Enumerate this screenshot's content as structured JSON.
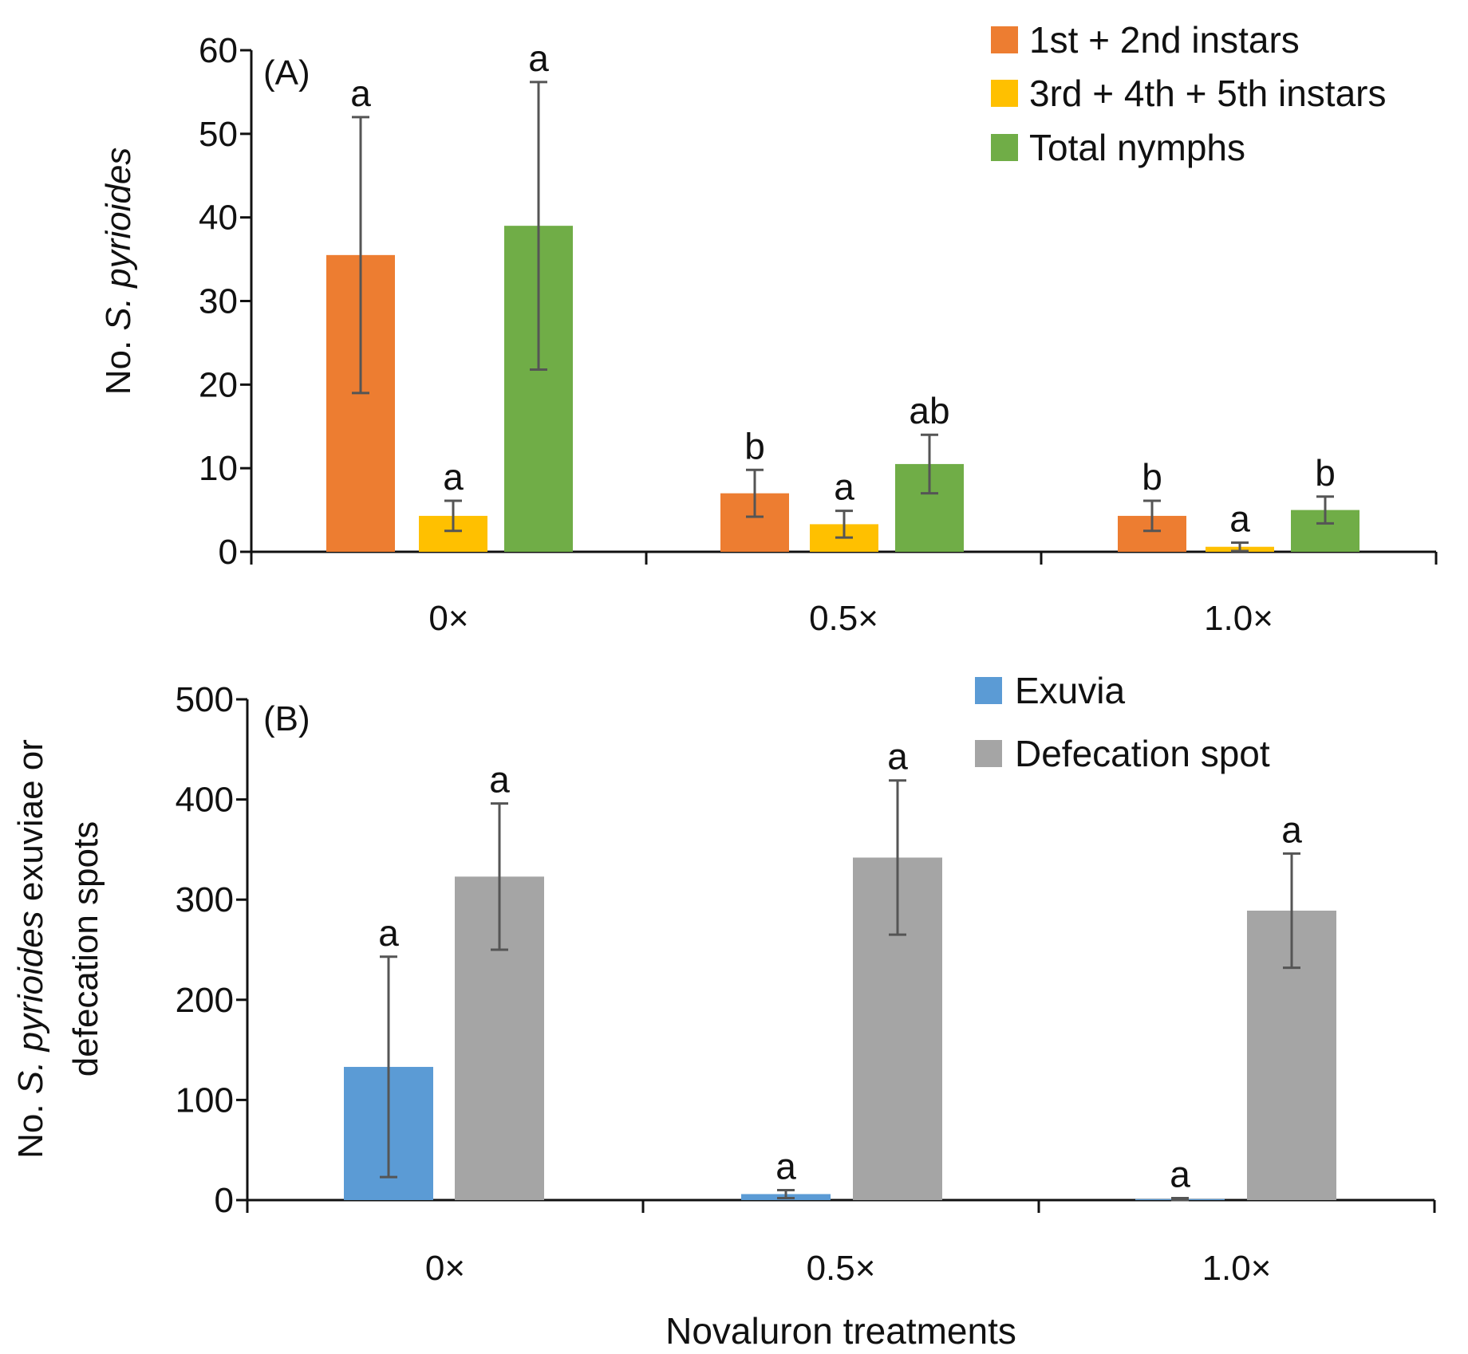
{
  "chart_data": [
    {
      "type": "bar",
      "panel_label": "(A)",
      "categories": [
        "0×",
        "0.5×",
        "1.0×"
      ],
      "ylabel_prefix": "No. ",
      "ylabel_italic": "S. pyrioides",
      "ylim": [
        0,
        60
      ],
      "yticks": [
        0,
        10,
        20,
        30,
        40,
        50,
        60
      ],
      "legend_position": "top-right",
      "series": [
        {
          "name": "1st + 2nd instars",
          "color": "#ED7D31",
          "values": [
            35.5,
            7.0,
            4.3
          ],
          "errors": [
            16.5,
            2.8,
            1.8
          ],
          "letters": [
            "a",
            "b",
            "b"
          ]
        },
        {
          "name": "3rd + 4th + 5th instars",
          "color": "#FFC000",
          "values": [
            4.3,
            3.3,
            0.6
          ],
          "errors": [
            1.8,
            1.6,
            0.5
          ],
          "letters": [
            "a",
            "a",
            "a"
          ]
        },
        {
          "name": "Total nymphs",
          "color": "#70AD47",
          "values": [
            39.0,
            10.5,
            5.0
          ],
          "errors": [
            17.2,
            3.5,
            1.6
          ],
          "letters": [
            "a",
            "ab",
            "b"
          ]
        }
      ]
    },
    {
      "type": "bar",
      "panel_label": "(B)",
      "categories": [
        "0×",
        "0.5×",
        "1.0×"
      ],
      "ylabel_line1_prefix": "No. ",
      "ylabel_line1_italic": "S. pyrioides",
      "ylabel_line1_suffix": " exuviae or",
      "ylabel_line2": "defecation spots",
      "xlabel": "Novaluron treatments",
      "ylim": [
        0,
        500
      ],
      "yticks": [
        0,
        100,
        200,
        300,
        400,
        500
      ],
      "legend_position": "top-right",
      "series": [
        {
          "name": "Exuvia",
          "color": "#5B9BD5",
          "values": [
            133,
            6,
            1
          ],
          "errors": [
            110,
            4,
            1
          ],
          "letters": [
            "a",
            "a",
            "a"
          ]
        },
        {
          "name": "Defecation spot",
          "color": "#A5A5A5",
          "values": [
            323,
            342,
            289
          ],
          "errors": [
            73,
            77,
            57
          ],
          "letters": [
            "a",
            "a",
            "a"
          ]
        }
      ]
    }
  ]
}
